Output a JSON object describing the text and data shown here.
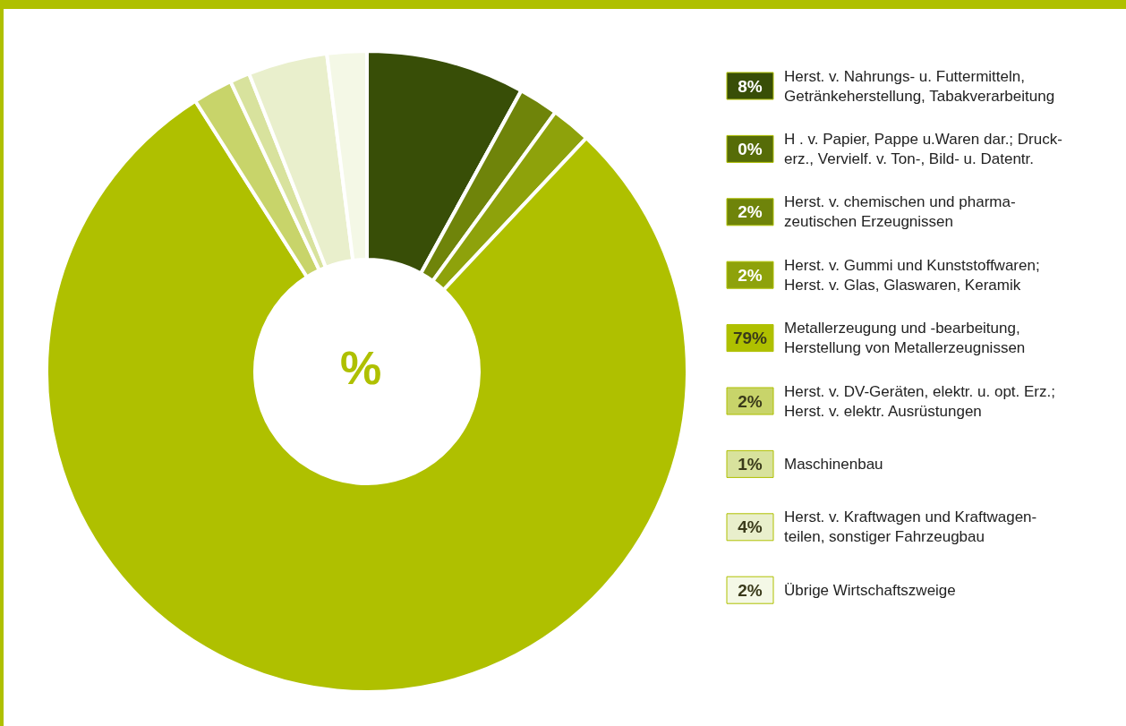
{
  "chart_data": {
    "type": "donut",
    "title": "%",
    "categories": [
      "Herst. v. Nahrungs- u. Futtermitteln,\nGetränkeherstellung, Tabakverarbeitung",
      "H . v. Papier, Pappe u.Waren dar.; Druck-\nerz., Vervielf. v. Ton-, Bild- u. Datentr.",
      "Herst. v. chemischen und pharma-\nzeutischen Erzeugnissen",
      "Herst. v. Gummi und Kunststoffwaren;\nHerst. v. Glas, Glaswaren, Keramik",
      "Metallerzeugung und -bearbeitung,\nHerstellung von Metallerzeugnissen",
      "Herst. v. DV-Geräten, elektr. u. opt. Erz.;\nHerst. v. elektr. Ausrüstungen",
      "Maschinenbau",
      "Herst. v. Kraftwagen und Kraftwagen-\nteilen, sonstiger Fahrzeugbau",
      "Übrige Wirtschaftszweige"
    ],
    "values": [
      8,
      0,
      2,
      2,
      79,
      2,
      1,
      4,
      2
    ],
    "colors": [
      "#384e07",
      "#566c08",
      "#6f840a",
      "#8ea20b",
      "#afc000",
      "#c8d46a",
      "#d8e29d",
      "#e9efcc",
      "#f4f8e6"
    ],
    "value_labels": [
      "8%",
      "0%",
      "2%",
      "2%",
      "79%",
      "2%",
      "1%",
      "4%",
      "2%"
    ],
    "legend": "right"
  }
}
